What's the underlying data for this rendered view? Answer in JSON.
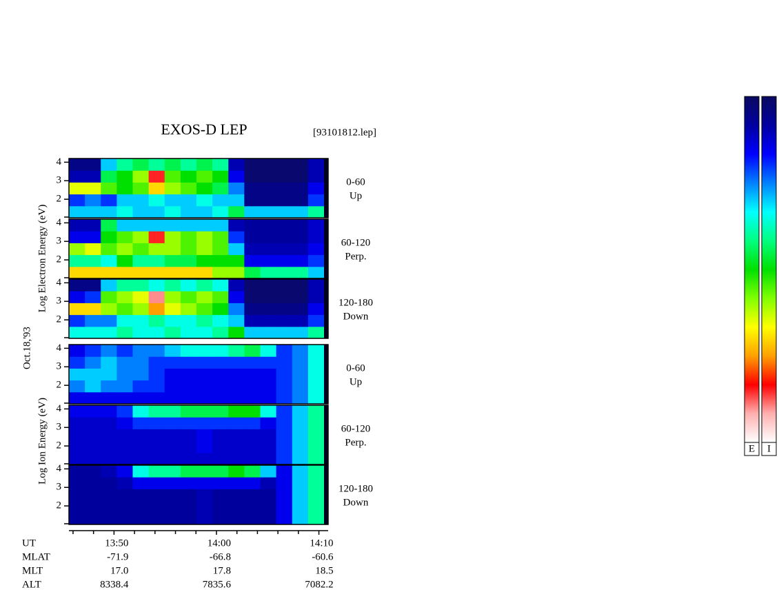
{
  "title": "EXOS-D LEP",
  "file": "[93101812.lep]",
  "date": "Oct.18,'93",
  "electron_axis_label": "Log Electron Energy (eV)",
  "ion_axis_label": "Log Ion Energy (eV)",
  "colormap": [
    "#0a0a60",
    "#0000a0",
    "#0000ff",
    "#0080ff",
    "#00ffff",
    "#00ff80",
    "#00e000",
    "#80ff00",
    "#ffff00",
    "#ffa000",
    "#ff0000",
    "#ffb0b0",
    "#ffffff"
  ],
  "colorbars": [
    {
      "label": "E"
    },
    {
      "label": "I"
    }
  ],
  "time_axis": {
    "xlim": [
      825.6,
      850.5
    ],
    "xticks": [
      {
        "value": 830,
        "label": "13:50"
      },
      {
        "value": 840,
        "label": "14:00"
      },
      {
        "value": 850,
        "label": "14:10"
      }
    ],
    "xminor_ticks": [
      826,
      828,
      832,
      834,
      836,
      838,
      842,
      844,
      846,
      848
    ]
  },
  "ephemeris": {
    "rows": [
      {
        "label": "UT"
      },
      {
        "label": "MLAT",
        "values": [
          "-71.9",
          "-66.8",
          "-60.6"
        ]
      },
      {
        "label": "MLT",
        "values": [
          "17.0",
          "17.8",
          "18.5"
        ]
      },
      {
        "label": "ALT",
        "values": [
          "8338.4",
          "7835.6",
          "7082.2"
        ]
      }
    ]
  },
  "chart_data": [
    {
      "type": "spectrogram",
      "channel": "0-60",
      "direction": "Up",
      "ylim": [
        1,
        4.2
      ],
      "yticks": [
        2,
        3,
        4
      ],
      "yminor_ticks": [
        1
      ],
      "zlim": [
        0,
        1
      ],
      "z": [
        [
          0.3,
          0.3,
          0.3,
          0.35,
          0.3,
          0.3,
          0.35,
          0.3,
          0.3,
          0.35,
          0.45,
          0.3,
          0.3,
          0.3,
          0.3,
          0.4
        ],
        [
          0.2,
          0.25,
          0.2,
          0.3,
          0.3,
          0.35,
          0.3,
          0.3,
          0.35,
          0.3,
          0.3,
          0.05,
          0.05,
          0.05,
          0.05,
          0.2
        ],
        [
          0.65,
          0.65,
          0.55,
          0.5,
          0.55,
          0.7,
          0.6,
          0.55,
          0.5,
          0.45,
          0.25,
          0.05,
          0.05,
          0.05,
          0.05,
          0.15
        ],
        [
          0.1,
          0.1,
          0.45,
          0.5,
          0.6,
          0.85,
          0.55,
          0.5,
          0.55,
          0.5,
          0.15,
          0.02,
          0.02,
          0.02,
          0.02,
          0.1
        ],
        [
          0.05,
          0.05,
          0.3,
          0.4,
          0.45,
          0.4,
          0.45,
          0.4,
          0.45,
          0.4,
          0.1,
          0.02,
          0.02,
          0.02,
          0.02,
          0.1
        ]
      ]
    },
    {
      "type": "spectrogram",
      "channel": "60-120",
      "direction": "Perp.",
      "ylim": [
        1,
        4.2
      ],
      "yticks": [
        2,
        3,
        4
      ],
      "yminor_ticks": [
        1
      ],
      "zlim": [
        0,
        1
      ],
      "z": [
        [
          0.7,
          0.7,
          0.7,
          0.7,
          0.7,
          0.7,
          0.7,
          0.7,
          0.7,
          0.6,
          0.6,
          0.45,
          0.4,
          0.4,
          0.4,
          0.3
        ],
        [
          0.4,
          0.4,
          0.35,
          0.5,
          0.4,
          0.4,
          0.45,
          0.45,
          0.5,
          0.5,
          0.5,
          0.15,
          0.15,
          0.15,
          0.15,
          0.2
        ],
        [
          0.6,
          0.65,
          0.55,
          0.6,
          0.55,
          0.6,
          0.6,
          0.55,
          0.6,
          0.55,
          0.3,
          0.1,
          0.1,
          0.1,
          0.1,
          0.15
        ],
        [
          0.15,
          0.15,
          0.5,
          0.55,
          0.6,
          0.85,
          0.6,
          0.55,
          0.6,
          0.55,
          0.2,
          0.08,
          0.08,
          0.08,
          0.08,
          0.12
        ],
        [
          0.1,
          0.1,
          0.45,
          0.3,
          0.3,
          0.3,
          0.3,
          0.3,
          0.3,
          0.3,
          0.1,
          0.08,
          0.08,
          0.08,
          0.08,
          0.12
        ]
      ]
    },
    {
      "type": "spectrogram",
      "channel": "120-180",
      "direction": "Down",
      "ylim": [
        1,
        4.2
      ],
      "yticks": [
        2,
        3,
        4
      ],
      "yminor_ticks": [
        1
      ],
      "zlim": [
        0,
        1
      ],
      "z": [
        [
          0.35,
          0.35,
          0.35,
          0.4,
          0.35,
          0.35,
          0.4,
          0.35,
          0.35,
          0.4,
          0.5,
          0.3,
          0.3,
          0.3,
          0.3,
          0.4
        ],
        [
          0.2,
          0.25,
          0.25,
          0.35,
          0.35,
          0.4,
          0.35,
          0.35,
          0.4,
          0.35,
          0.3,
          0.1,
          0.1,
          0.1,
          0.1,
          0.2
        ],
        [
          0.7,
          0.7,
          0.6,
          0.55,
          0.6,
          0.75,
          0.65,
          0.6,
          0.55,
          0.5,
          0.25,
          0.05,
          0.05,
          0.05,
          0.05,
          0.15
        ],
        [
          0.15,
          0.2,
          0.55,
          0.6,
          0.65,
          0.9,
          0.6,
          0.55,
          0.6,
          0.55,
          0.15,
          0.02,
          0.02,
          0.02,
          0.02,
          0.1
        ],
        [
          0.05,
          0.05,
          0.3,
          0.4,
          0.4,
          0.35,
          0.4,
          0.35,
          0.4,
          0.35,
          0.1,
          0.02,
          0.02,
          0.02,
          0.02,
          0.1
        ]
      ]
    },
    {
      "type": "spectrogram",
      "channel": "0-60",
      "direction": "Up",
      "ylim": [
        1,
        4.2
      ],
      "yticks": [
        2,
        3,
        4
      ],
      "yminor_ticks": [
        1
      ],
      "zlim": [
        0,
        1
      ],
      "z": [
        [
          0.15,
          0.15,
          0.15,
          0.15,
          0.15,
          0.15,
          0.15,
          0.15,
          0.15,
          0.15,
          0.15,
          0.15,
          0.15,
          0.2,
          0.25,
          0.35
        ],
        [
          0.25,
          0.3,
          0.25,
          0.25,
          0.2,
          0.2,
          0.15,
          0.15,
          0.15,
          0.15,
          0.15,
          0.15,
          0.15,
          0.2,
          0.25,
          0.35
        ],
        [
          0.3,
          0.3,
          0.3,
          0.25,
          0.25,
          0.2,
          0.15,
          0.15,
          0.15,
          0.15,
          0.15,
          0.15,
          0.15,
          0.2,
          0.25,
          0.35
        ],
        [
          0.2,
          0.25,
          0.3,
          0.25,
          0.25,
          0.2,
          0.2,
          0.2,
          0.2,
          0.2,
          0.2,
          0.2,
          0.2,
          0.2,
          0.25,
          0.35
        ],
        [
          0.15,
          0.2,
          0.25,
          0.2,
          0.25,
          0.25,
          0.3,
          0.35,
          0.35,
          0.35,
          0.4,
          0.45,
          0.35,
          0.2,
          0.25,
          0.35
        ]
      ]
    },
    {
      "type": "spectrogram",
      "channel": "60-120",
      "direction": "Perp.",
      "ylim": [
        1,
        4.2
      ],
      "yticks": [
        2,
        3,
        4
      ],
      "yminor_ticks": [
        1
      ],
      "zlim": [
        0,
        1
      ],
      "z": [
        [
          0.12,
          0.12,
          0.12,
          0.12,
          0.12,
          0.12,
          0.12,
          0.12,
          0.12,
          0.12,
          0.12,
          0.12,
          0.12,
          0.2,
          0.3,
          0.4
        ],
        [
          0.12,
          0.12,
          0.12,
          0.12,
          0.12,
          0.12,
          0.12,
          0.12,
          0.15,
          0.12,
          0.12,
          0.12,
          0.12,
          0.2,
          0.3,
          0.4
        ],
        [
          0.12,
          0.12,
          0.12,
          0.12,
          0.12,
          0.12,
          0.12,
          0.12,
          0.15,
          0.12,
          0.12,
          0.12,
          0.12,
          0.2,
          0.3,
          0.4
        ],
        [
          0.12,
          0.12,
          0.12,
          0.15,
          0.2,
          0.2,
          0.2,
          0.2,
          0.2,
          0.2,
          0.2,
          0.2,
          0.15,
          0.2,
          0.3,
          0.4
        ],
        [
          0.15,
          0.15,
          0.15,
          0.2,
          0.35,
          0.4,
          0.4,
          0.45,
          0.45,
          0.45,
          0.5,
          0.5,
          0.35,
          0.2,
          0.3,
          0.4
        ]
      ]
    },
    {
      "type": "spectrogram",
      "channel": "120-180",
      "direction": "Down",
      "ylim": [
        1,
        4.2
      ],
      "yticks": [
        2,
        3,
        4
      ],
      "yminor_ticks": [
        1
      ],
      "zlim": [
        0,
        1
      ],
      "z": [
        [
          0.08,
          0.08,
          0.08,
          0.08,
          0.08,
          0.08,
          0.08,
          0.08,
          0.1,
          0.08,
          0.08,
          0.08,
          0.08,
          0.15,
          0.3,
          0.4
        ],
        [
          0.08,
          0.08,
          0.08,
          0.08,
          0.08,
          0.08,
          0.08,
          0.08,
          0.1,
          0.08,
          0.08,
          0.08,
          0.08,
          0.15,
          0.3,
          0.4
        ],
        [
          0.08,
          0.08,
          0.08,
          0.08,
          0.08,
          0.08,
          0.08,
          0.08,
          0.1,
          0.08,
          0.08,
          0.08,
          0.08,
          0.15,
          0.3,
          0.4
        ],
        [
          0.08,
          0.08,
          0.08,
          0.1,
          0.15,
          0.15,
          0.15,
          0.15,
          0.15,
          0.15,
          0.15,
          0.15,
          0.1,
          0.15,
          0.3,
          0.4
        ],
        [
          0.08,
          0.08,
          0.1,
          0.15,
          0.35,
          0.4,
          0.4,
          0.45,
          0.45,
          0.45,
          0.5,
          0.45,
          0.3,
          0.15,
          0.3,
          0.4
        ]
      ]
    }
  ]
}
